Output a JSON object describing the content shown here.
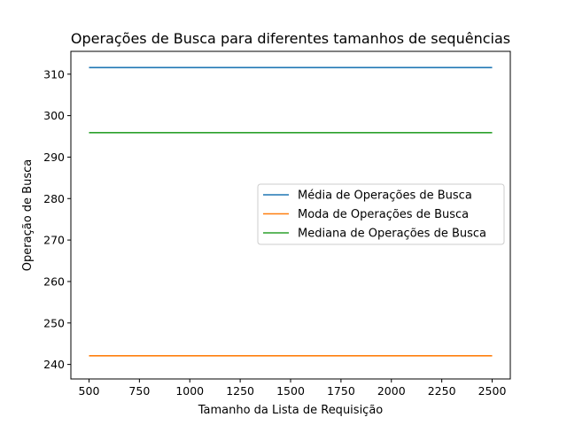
{
  "chart_data": {
    "type": "line",
    "title": "Operações de Busca para diferentes tamanhos de sequências",
    "xlabel": "Tamanho da Lista de Requisição",
    "ylabel": "Operação de Busca",
    "xlim": [
      410,
      2590
    ],
    "ylim": [
      236.5,
      315.5
    ],
    "x_ticks": [
      500,
      750,
      1000,
      1250,
      1500,
      1750,
      2000,
      2250,
      2500
    ],
    "y_ticks": [
      240,
      250,
      260,
      270,
      280,
      290,
      300,
      310
    ],
    "grid": false,
    "legend_position": "center-right",
    "x": [
      500,
      2500
    ],
    "series": [
      {
        "name": "Média de Operações de Busca",
        "color": "#1f77b4",
        "values": [
          311.6,
          311.6
        ]
      },
      {
        "name": "Moda de Operações de Busca",
        "color": "#ff7f0e",
        "values": [
          242.1,
          242.1
        ]
      },
      {
        "name": "Mediana de Operações de Busca",
        "color": "#2ca02c",
        "values": [
          295.9,
          295.9
        ]
      }
    ]
  }
}
